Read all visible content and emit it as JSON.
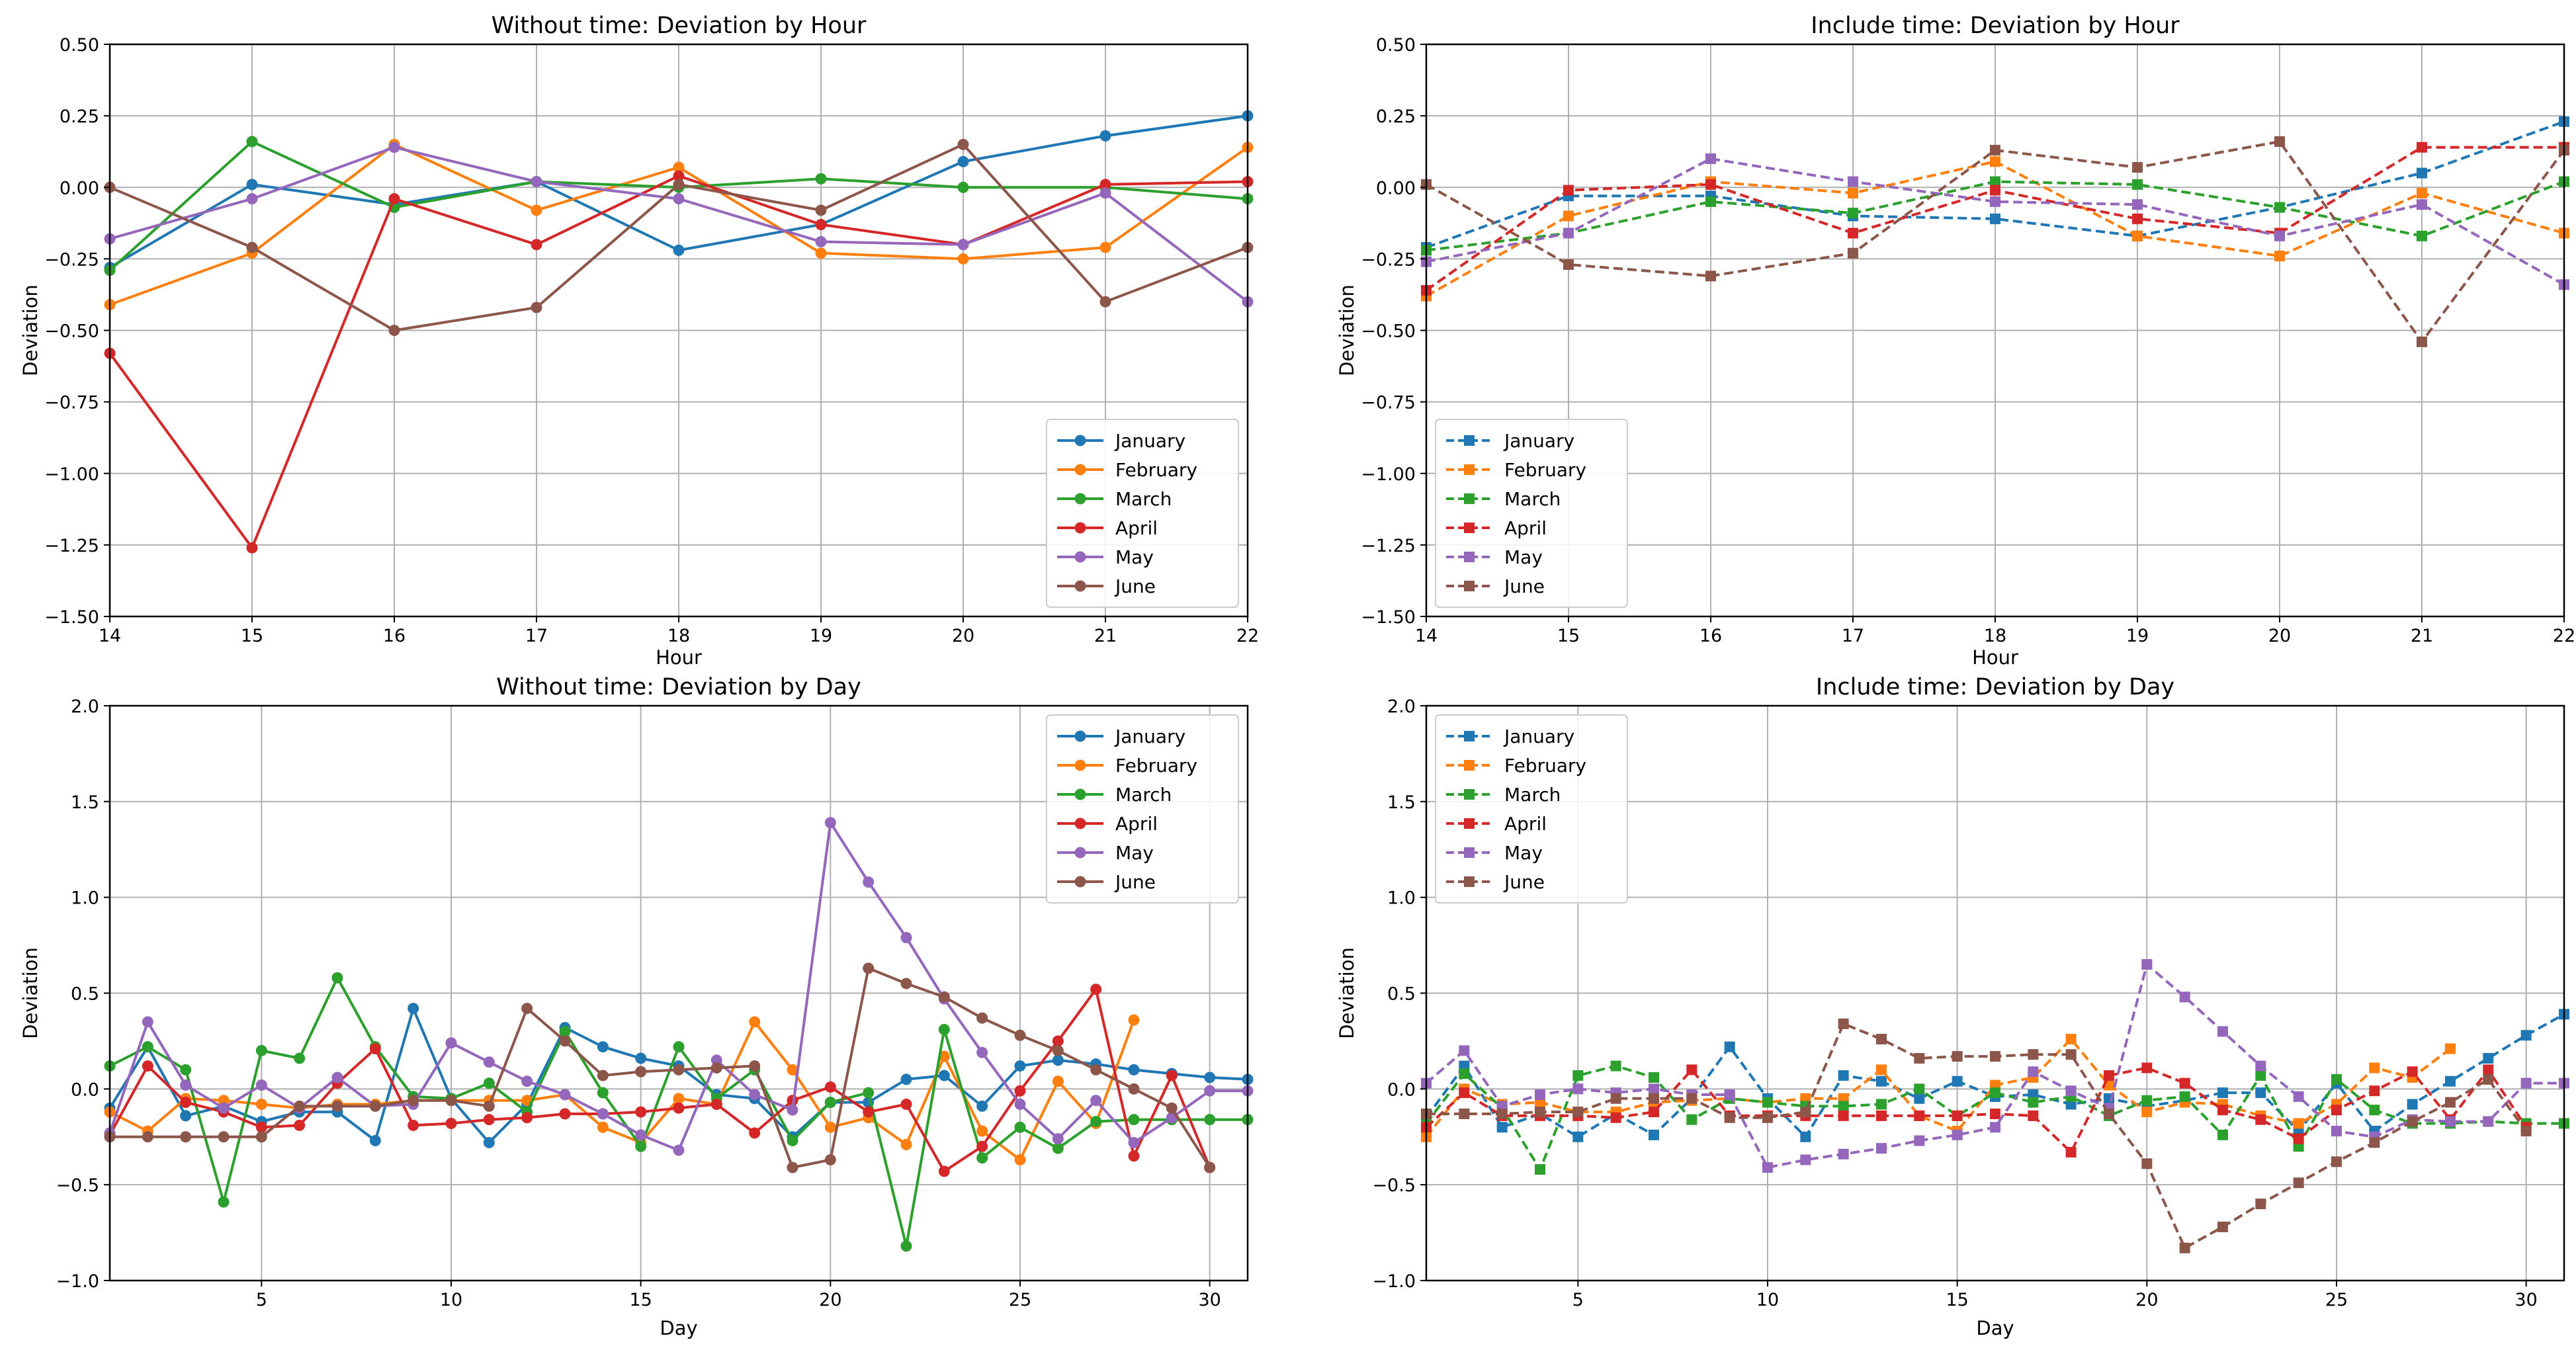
{
  "colors": {
    "January": "#1f77b4",
    "February": "#ff7f0e",
    "March": "#2ca02c",
    "April": "#d62728",
    "May": "#9467bd",
    "June": "#8c564b"
  },
  "chart_data": [
    {
      "type": "line",
      "title": "Without time: Deviation by Hour",
      "xlabel": "Hour",
      "ylabel": "Deviation",
      "xlim": [
        14,
        22
      ],
      "ylim": [
        -1.5,
        0.5
      ],
      "xticks": [
        14,
        15,
        16,
        17,
        18,
        19,
        20,
        21,
        22
      ],
      "yticks": [
        -1.5,
        -1.25,
        -1.0,
        -0.75,
        -0.5,
        -0.25,
        0.0,
        0.25,
        0.5
      ],
      "ytick_labels": [
        "−1.50",
        "−1.25",
        "−1.00",
        "−0.75",
        "−0.50",
        "−0.25",
        "0.00",
        "0.25",
        "0.50"
      ],
      "xtick_labels": [
        "14",
        "15",
        "16",
        "17",
        "18",
        "19",
        "20",
        "21",
        "22"
      ],
      "marker": "circle",
      "dashed": false,
      "legend_position": "lower-right",
      "x": [
        14,
        15,
        16,
        17,
        18,
        19,
        20,
        21,
        22
      ],
      "series": [
        {
          "name": "January",
          "values": [
            -0.28,
            0.01,
            -0.06,
            0.02,
            -0.22,
            -0.13,
            0.09,
            0.18,
            0.25
          ]
        },
        {
          "name": "February",
          "values": [
            -0.41,
            -0.23,
            0.15,
            -0.08,
            0.07,
            -0.23,
            -0.25,
            -0.21,
            0.14
          ]
        },
        {
          "name": "March",
          "values": [
            -0.29,
            0.16,
            -0.07,
            0.02,
            0.0,
            0.03,
            0.0,
            0.0,
            -0.04
          ]
        },
        {
          "name": "April",
          "values": [
            -0.58,
            -1.26,
            -0.04,
            -0.2,
            0.04,
            -0.13,
            -0.2,
            0.01,
            0.02
          ]
        },
        {
          "name": "May",
          "values": [
            -0.18,
            -0.04,
            0.14,
            0.02,
            -0.04,
            -0.19,
            -0.2,
            -0.02,
            -0.4
          ]
        },
        {
          "name": "June",
          "values": [
            0.0,
            -0.21,
            -0.5,
            -0.42,
            0.01,
            -0.08,
            0.15,
            -0.4,
            -0.21
          ]
        }
      ]
    },
    {
      "type": "line",
      "title": "Include time: Deviation by Hour",
      "xlabel": "Hour",
      "ylabel": "Deviation",
      "xlim": [
        14,
        22
      ],
      "ylim": [
        -1.5,
        0.5
      ],
      "xticks": [
        14,
        15,
        16,
        17,
        18,
        19,
        20,
        21,
        22
      ],
      "yticks": [
        -1.5,
        -1.25,
        -1.0,
        -0.75,
        -0.5,
        -0.25,
        0.0,
        0.25,
        0.5
      ],
      "ytick_labels": [
        "−1.50",
        "−1.25",
        "−1.00",
        "−0.75",
        "−0.50",
        "−0.25",
        "0.00",
        "0.25",
        "0.50"
      ],
      "xtick_labels": [
        "14",
        "15",
        "16",
        "17",
        "18",
        "19",
        "20",
        "21",
        "22"
      ],
      "marker": "square",
      "dashed": true,
      "legend_position": "lower-left",
      "x": [
        14,
        15,
        16,
        17,
        18,
        19,
        20,
        21,
        22
      ],
      "series": [
        {
          "name": "January",
          "values": [
            -0.21,
            -0.03,
            -0.03,
            -0.1,
            -0.11,
            -0.17,
            -0.07,
            0.05,
            0.23
          ]
        },
        {
          "name": "February",
          "values": [
            -0.38,
            -0.1,
            0.02,
            -0.02,
            0.09,
            -0.17,
            -0.24,
            -0.02,
            -0.16
          ]
        },
        {
          "name": "March",
          "values": [
            -0.22,
            -0.16,
            -0.05,
            -0.09,
            0.02,
            0.01,
            -0.07,
            -0.17,
            0.02
          ]
        },
        {
          "name": "April",
          "values": [
            -0.36,
            -0.01,
            0.01,
            -0.16,
            -0.01,
            -0.11,
            -0.16,
            0.14,
            0.14
          ]
        },
        {
          "name": "May",
          "values": [
            -0.26,
            -0.16,
            0.1,
            0.02,
            -0.05,
            -0.06,
            -0.17,
            -0.06,
            -0.34
          ]
        },
        {
          "name": "June",
          "values": [
            0.01,
            -0.27,
            -0.31,
            -0.23,
            0.13,
            0.07,
            0.16,
            -0.54,
            0.13
          ]
        }
      ]
    },
    {
      "type": "line",
      "title": "Without time: Deviation by Day",
      "xlabel": "Day",
      "ylabel": "Deviation",
      "xlim": [
        1,
        31
      ],
      "ylim": [
        -1.0,
        2.0
      ],
      "xticks": [
        5,
        10,
        15,
        20,
        25,
        30
      ],
      "yticks": [
        -1.0,
        -0.5,
        0.0,
        0.5,
        1.0,
        1.5,
        2.0
      ],
      "ytick_labels": [
        "−1.0",
        "−0.5",
        "0.0",
        "0.5",
        "1.0",
        "1.5",
        "2.0"
      ],
      "xtick_labels": [
        "5",
        "10",
        "15",
        "20",
        "25",
        "30"
      ],
      "marker": "circle",
      "dashed": false,
      "legend_position": "upper-right",
      "x": [
        1,
        2,
        3,
        4,
        5,
        6,
        7,
        8,
        9,
        10,
        11,
        12,
        13,
        14,
        15,
        16,
        17,
        18,
        19,
        20,
        21,
        22,
        23,
        24,
        25,
        26,
        27,
        28,
        29,
        30,
        31
      ],
      "series": [
        {
          "name": "January",
          "values": [
            -0.1,
            0.22,
            -0.14,
            -0.09,
            -0.17,
            -0.12,
            -0.12,
            -0.27,
            0.42,
            -0.05,
            -0.28,
            -0.08,
            0.32,
            0.22,
            0.16,
            0.12,
            -0.03,
            -0.05,
            -0.25,
            -0.07,
            -0.07,
            0.05,
            0.07,
            -0.09,
            0.12,
            0.15,
            0.13,
            0.1,
            0.08,
            0.06,
            0.05
          ]
        },
        {
          "name": "February",
          "values": [
            -0.12,
            -0.22,
            -0.05,
            -0.06,
            -0.08,
            -0.1,
            -0.08,
            -0.08,
            -0.06,
            -0.06,
            -0.06,
            -0.06,
            -0.03,
            -0.2,
            -0.28,
            -0.05,
            -0.08,
            0.35,
            0.1,
            -0.2,
            -0.15,
            -0.29,
            0.17,
            -0.22,
            -0.37,
            0.04,
            -0.18,
            0.36,
            null,
            null,
            null
          ]
        },
        {
          "name": "March",
          "values": [
            0.12,
            0.22,
            0.1,
            -0.59,
            0.2,
            0.16,
            0.58,
            0.22,
            -0.04,
            -0.05,
            0.03,
            -0.12,
            0.3,
            -0.02,
            -0.3,
            0.22,
            -0.05,
            0.1,
            -0.27,
            -0.07,
            -0.02,
            -0.82,
            0.31,
            -0.36,
            -0.2,
            -0.31,
            -0.17,
            -0.16,
            -0.16,
            -0.16,
            -0.16
          ]
        },
        {
          "name": "April",
          "values": [
            -0.24,
            0.12,
            -0.07,
            -0.12,
            -0.2,
            -0.19,
            0.03,
            0.21,
            -0.19,
            -0.18,
            -0.16,
            -0.15,
            -0.13,
            -0.13,
            -0.12,
            -0.1,
            -0.08,
            -0.23,
            -0.06,
            0.01,
            -0.12,
            -0.08,
            -0.43,
            -0.3,
            -0.01,
            0.25,
            0.52,
            -0.35,
            0.07,
            -0.41,
            null
          ]
        },
        {
          "name": "May",
          "values": [
            -0.23,
            0.35,
            0.02,
            -0.1,
            0.02,
            -0.1,
            0.06,
            -0.09,
            -0.08,
            0.24,
            0.14,
            0.04,
            -0.03,
            -0.13,
            -0.24,
            -0.32,
            0.15,
            -0.03,
            -0.11,
            1.39,
            1.08,
            0.79,
            0.47,
            0.19,
            -0.08,
            -0.26,
            -0.06,
            -0.28,
            -0.15,
            -0.01,
            -0.01
          ]
        },
        {
          "name": "June",
          "values": [
            -0.25,
            -0.25,
            -0.25,
            -0.25,
            -0.25,
            -0.09,
            -0.09,
            -0.09,
            -0.06,
            -0.06,
            -0.09,
            0.42,
            0.25,
            0.07,
            0.09,
            0.1,
            0.11,
            0.12,
            -0.41,
            -0.37,
            0.63,
            0.55,
            0.48,
            0.37,
            0.28,
            0.2,
            0.1,
            0.0,
            -0.1,
            -0.41,
            null
          ]
        }
      ]
    },
    {
      "type": "line",
      "title": "Include time: Deviation by Day",
      "xlabel": "Day",
      "ylabel": "Deviation",
      "xlim": [
        1,
        31
      ],
      "ylim": [
        -1.0,
        2.0
      ],
      "xticks": [
        5,
        10,
        15,
        20,
        25,
        30
      ],
      "yticks": [
        -1.0,
        -0.5,
        0.0,
        0.5,
        1.0,
        1.5,
        2.0
      ],
      "ytick_labels": [
        "−1.0",
        "−0.5",
        "0.0",
        "0.5",
        "1.0",
        "1.5",
        "2.0"
      ],
      "xtick_labels": [
        "5",
        "10",
        "15",
        "20",
        "25",
        "30"
      ],
      "marker": "square",
      "dashed": true,
      "legend_position": "upper-left",
      "x": [
        1,
        2,
        3,
        4,
        5,
        6,
        7,
        8,
        9,
        10,
        11,
        12,
        13,
        14,
        15,
        16,
        17,
        18,
        19,
        20,
        21,
        22,
        23,
        24,
        25,
        26,
        27,
        28,
        29,
        30,
        31
      ],
      "series": [
        {
          "name": "January",
          "values": [
            -0.15,
            0.12,
            -0.2,
            -0.13,
            -0.25,
            -0.13,
            -0.24,
            -0.05,
            0.22,
            -0.05,
            -0.25,
            0.07,
            0.04,
            -0.05,
            0.04,
            -0.04,
            -0.03,
            -0.08,
            -0.05,
            -0.09,
            -0.06,
            -0.02,
            -0.02,
            -0.22,
            0.03,
            -0.22,
            -0.08,
            0.04,
            0.16,
            0.28,
            0.39
          ]
        },
        {
          "name": "February",
          "values": [
            -0.25,
            0.0,
            -0.08,
            -0.07,
            -0.12,
            -0.12,
            -0.07,
            -0.06,
            -0.05,
            -0.07,
            -0.05,
            -0.05,
            0.1,
            -0.14,
            -0.22,
            0.02,
            0.06,
            0.26,
            0.02,
            -0.12,
            -0.07,
            -0.08,
            -0.14,
            -0.18,
            -0.08,
            0.11,
            0.06,
            0.21,
            null,
            null,
            null
          ]
        },
        {
          "name": "March",
          "values": [
            -0.18,
            0.08,
            -0.1,
            -0.42,
            0.07,
            0.12,
            0.06,
            -0.16,
            -0.05,
            -0.07,
            -0.09,
            -0.09,
            -0.08,
            0.0,
            -0.14,
            -0.02,
            -0.07,
            -0.04,
            -0.14,
            -0.06,
            -0.04,
            -0.24,
            0.07,
            -0.3,
            0.05,
            -0.11,
            -0.18,
            -0.18,
            -0.17,
            -0.18,
            -0.18
          ]
        },
        {
          "name": "April",
          "values": [
            -0.2,
            -0.02,
            -0.14,
            -0.14,
            -0.14,
            -0.15,
            -0.12,
            0.1,
            -0.14,
            -0.14,
            -0.14,
            -0.14,
            -0.14,
            -0.14,
            -0.14,
            -0.13,
            -0.14,
            -0.33,
            0.07,
            0.11,
            0.03,
            -0.11,
            -0.16,
            -0.26,
            -0.11,
            -0.01,
            0.09,
            -0.16,
            0.1,
            -0.2,
            null
          ]
        },
        {
          "name": "May",
          "values": [
            0.03,
            0.2,
            -0.09,
            -0.03,
            0.0,
            -0.02,
            0.0,
            -0.03,
            -0.03,
            -0.41,
            -0.37,
            -0.34,
            -0.31,
            -0.27,
            -0.24,
            -0.2,
            0.09,
            -0.01,
            -0.1,
            0.65,
            0.48,
            0.3,
            0.12,
            -0.04,
            -0.22,
            -0.25,
            -0.16,
            -0.17,
            -0.17,
            0.03,
            0.03
          ]
        },
        {
          "name": "June",
          "values": [
            -0.13,
            -0.13,
            -0.13,
            -0.12,
            -0.12,
            -0.05,
            -0.05,
            -0.05,
            -0.15,
            -0.15,
            -0.12,
            0.34,
            0.26,
            0.16,
            0.17,
            0.17,
            0.18,
            0.18,
            -0.13,
            -0.39,
            -0.83,
            -0.72,
            -0.6,
            -0.49,
            -0.38,
            -0.28,
            -0.17,
            -0.07,
            0.05,
            -0.22,
            null
          ]
        }
      ]
    }
  ]
}
